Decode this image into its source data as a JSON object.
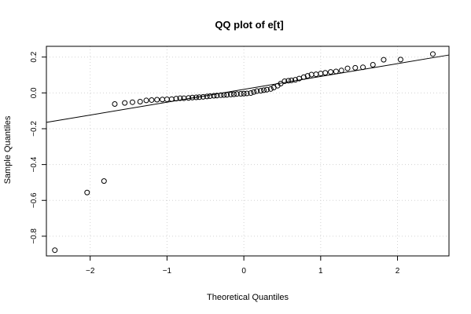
{
  "chart_data": {
    "type": "scatter",
    "title": "QQ plot of e[t]",
    "xlabel": "Theoretical Quantiles",
    "ylabel": "Sample Quantiles",
    "xlim": [
      -2.57,
      2.67
    ],
    "ylim": [
      -0.91,
      0.26
    ],
    "grid": true,
    "x_ticks": [
      -2,
      -1,
      0,
      1,
      2
    ],
    "y_ticks": [
      -0.8,
      -0.6,
      -0.4,
      -0.2,
      0.0,
      0.2
    ],
    "x_tick_labels": [
      "−2",
      "−1",
      "0",
      "1",
      "2"
    ],
    "y_tick_labels": [
      "−0.8",
      "−0.6",
      "−0.4",
      "−0.2",
      "0.0",
      "0.2"
    ],
    "points": {
      "x": [
        -2.46,
        -2.04,
        -1.82,
        -1.68,
        -1.55,
        -1.45,
        -1.35,
        -1.27,
        -1.2,
        -1.13,
        -1.06,
        -1.0,
        -0.94,
        -0.88,
        -0.83,
        -0.78,
        -0.72,
        -0.67,
        -0.62,
        -0.58,
        -0.53,
        -0.48,
        -0.44,
        -0.39,
        -0.35,
        -0.3,
        -0.26,
        -0.22,
        -0.17,
        -0.13,
        -0.09,
        -0.04,
        0.0,
        0.04,
        0.09,
        0.13,
        0.17,
        0.22,
        0.26,
        0.3,
        0.35,
        0.39,
        0.44,
        0.48,
        0.53,
        0.58,
        0.62,
        0.67,
        0.72,
        0.78,
        0.83,
        0.88,
        0.94,
        1.0,
        1.06,
        1.13,
        1.2,
        1.27,
        1.35,
        1.45,
        1.55,
        1.68,
        1.82,
        2.04,
        2.46
      ],
      "y": [
        -0.878,
        -0.556,
        -0.492,
        -0.062,
        -0.056,
        -0.052,
        -0.049,
        -0.042,
        -0.04,
        -0.038,
        -0.037,
        -0.036,
        -0.035,
        -0.032,
        -0.03,
        -0.03,
        -0.028,
        -0.026,
        -0.025,
        -0.024,
        -0.022,
        -0.02,
        -0.018,
        -0.016,
        -0.015,
        -0.013,
        -0.012,
        -0.011,
        -0.009,
        -0.008,
        -0.006,
        -0.005,
        -0.004,
        -0.003,
        -0.001,
        0.005,
        0.01,
        0.012,
        0.015,
        0.018,
        0.022,
        0.03,
        0.04,
        0.052,
        0.065,
        0.068,
        0.07,
        0.073,
        0.08,
        0.088,
        0.095,
        0.102,
        0.104,
        0.108,
        0.112,
        0.117,
        0.12,
        0.125,
        0.137,
        0.14,
        0.143,
        0.157,
        0.185,
        0.186,
        0.217
      ]
    },
    "reference_line": {
      "intercept": 0.0198,
      "slope": 0.0718
    }
  }
}
